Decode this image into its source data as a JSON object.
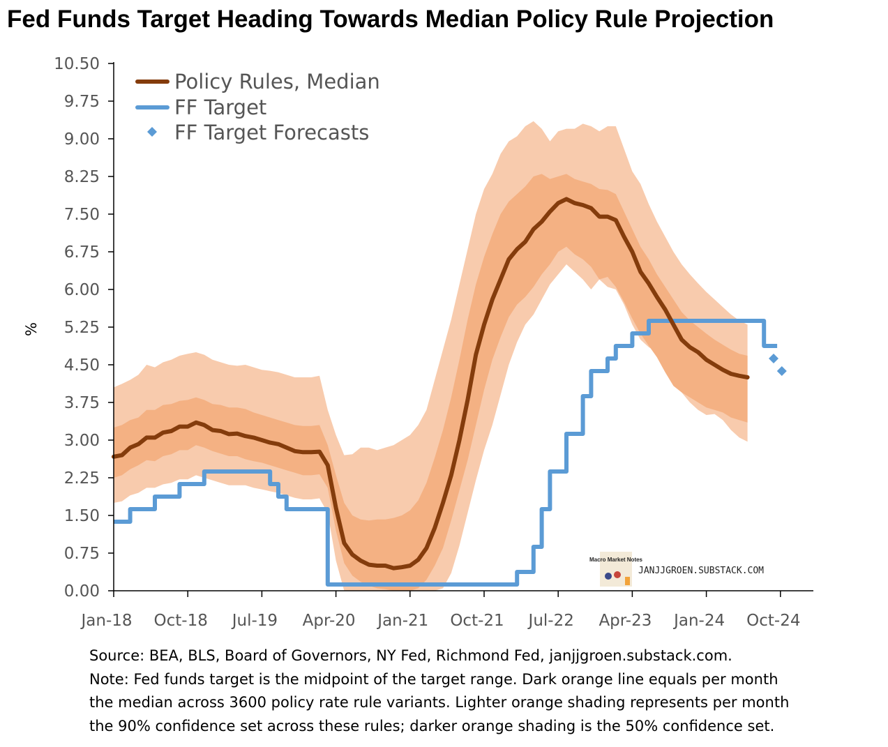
{
  "title": "Fed Funds Target Heading Towards Median Policy Rule Projection",
  "notes": {
    "source": "Source: BEA, BLS, Board of Governors, NY Fed, Richmond Fed, janjjgroen.substack.com.",
    "note_line1": "Note: Fed funds target is the midpoint of the target range. Dark orange line equals per month",
    "note_line2": "the median across 3600 policy rate rule variants. Lighter orange shading represents per month",
    "note_line3": "the 90% confidence set across these rules; darker orange shading is the 50% confidence set."
  },
  "watermark": {
    "text": "JANJJGROEN.SUBSTACK.COM",
    "logo_text": "Macro Market Notes"
  },
  "colors": {
    "median": "#843C0C",
    "band90": "#F8CBAD",
    "band50": "#F4B183",
    "target": "#5B9BD5"
  },
  "chart_data": {
    "type": "line",
    "title": "Fed Funds Target Heading Towards Median Policy Rule Projection",
    "xlabel": "",
    "ylabel": "%",
    "ylim": [
      0,
      10.5
    ],
    "yticks": [
      "0.00",
      "0.75",
      "1.50",
      "2.25",
      "3.00",
      "3.75",
      "4.50",
      "5.25",
      "6.00",
      "6.75",
      "7.50",
      "8.25",
      "9.00",
      "9.75",
      "10.50"
    ],
    "xticks": [
      "Jan-18",
      "Oct-18",
      "Jul-19",
      "Apr-20",
      "Jan-21",
      "Oct-21",
      "Jul-22",
      "Apr-23",
      "Jan-24",
      "Oct-24"
    ],
    "x_start": "Jan-18",
    "x_end": "Dec-24",
    "grid": false,
    "legend_position": "top-left",
    "legend": [
      "Policy Rules, Median",
      "FF Target",
      "FF Target Forecasts"
    ],
    "series": [
      {
        "name": "Policy Rules, Median",
        "values": [
          2.67,
          2.7,
          2.85,
          2.92,
          3.05,
          3.05,
          3.15,
          3.18,
          3.27,
          3.27,
          3.35,
          3.3,
          3.2,
          3.18,
          3.12,
          3.13,
          3.08,
          3.05,
          3.0,
          2.95,
          2.92,
          2.85,
          2.78,
          2.76,
          2.76,
          2.77,
          2.5,
          1.65,
          0.95,
          0.72,
          0.6,
          0.52,
          0.5,
          0.5,
          0.45,
          0.47,
          0.5,
          0.62,
          0.85,
          1.25,
          1.75,
          2.3,
          3.0,
          3.8,
          4.7,
          5.3,
          5.8,
          6.2,
          6.6,
          6.8,
          6.95,
          7.2,
          7.35,
          7.55,
          7.72,
          7.8,
          7.72,
          7.68,
          7.62,
          7.45,
          7.45,
          7.38,
          7.05,
          6.75,
          6.35,
          6.12,
          5.85,
          5.6,
          5.3,
          5.0,
          4.85,
          4.75,
          4.6,
          4.5,
          4.4,
          4.32,
          4.28,
          4.25
        ]
      },
      {
        "name": "FF Target",
        "values": [
          1.375,
          1.375,
          1.625,
          1.625,
          1.625,
          1.875,
          1.875,
          1.875,
          2.125,
          2.125,
          2.125,
          2.375,
          2.375,
          2.375,
          2.375,
          2.375,
          2.375,
          2.375,
          2.375,
          2.125,
          1.875,
          1.625,
          1.625,
          1.625,
          1.625,
          1.625,
          0.125,
          0.125,
          0.125,
          0.125,
          0.125,
          0.125,
          0.125,
          0.125,
          0.125,
          0.125,
          0.125,
          0.125,
          0.125,
          0.125,
          0.125,
          0.125,
          0.125,
          0.125,
          0.125,
          0.125,
          0.125,
          0.125,
          0.125,
          0.375,
          0.375,
          0.875,
          1.625,
          2.375,
          2.375,
          3.125,
          3.125,
          3.875,
          4.375,
          4.375,
          4.625,
          4.875,
          4.875,
          5.125,
          5.125,
          5.375,
          5.375,
          5.375,
          5.375,
          5.375,
          5.375,
          5.375,
          5.375,
          5.375,
          5.375,
          5.375,
          5.375,
          5.375,
          5.375,
          4.875,
          4.875
        ]
      },
      {
        "name": "FF Target Forecasts",
        "x_index": [
          80,
          81
        ],
        "values": [
          4.625,
          4.375
        ]
      }
    ],
    "bands": {
      "band90_upper": [
        4.05,
        4.12,
        4.2,
        4.3,
        4.5,
        4.45,
        4.55,
        4.6,
        4.68,
        4.72,
        4.75,
        4.7,
        4.6,
        4.55,
        4.5,
        4.48,
        4.5,
        4.45,
        4.4,
        4.38,
        4.35,
        4.3,
        4.25,
        4.25,
        4.25,
        4.28,
        3.6,
        3.1,
        2.7,
        2.72,
        2.85,
        2.85,
        2.8,
        2.85,
        2.9,
        3.0,
        3.1,
        3.3,
        3.6,
        4.2,
        4.8,
        5.4,
        6.1,
        6.8,
        7.5,
        8.0,
        8.3,
        8.7,
        8.95,
        9.05,
        9.25,
        9.35,
        9.2,
        8.95,
        9.15,
        9.2,
        9.2,
        9.3,
        9.25,
        9.15,
        9.25,
        9.25,
        8.8,
        8.35,
        8.1,
        7.7,
        7.35,
        7.05,
        6.75,
        6.5,
        6.3,
        6.12,
        5.95,
        5.8,
        5.65,
        5.5,
        5.38,
        5.3
      ],
      "band50_upper": [
        3.25,
        3.3,
        3.4,
        3.45,
        3.6,
        3.6,
        3.7,
        3.72,
        3.78,
        3.8,
        3.85,
        3.8,
        3.72,
        3.7,
        3.65,
        3.65,
        3.62,
        3.55,
        3.5,
        3.45,
        3.4,
        3.35,
        3.3,
        3.28,
        3.28,
        3.3,
        2.9,
        2.3,
        1.75,
        1.5,
        1.42,
        1.4,
        1.42,
        1.42,
        1.45,
        1.5,
        1.6,
        1.8,
        2.15,
        2.65,
        3.2,
        3.85,
        4.6,
        5.4,
        6.1,
        6.65,
        7.1,
        7.5,
        7.75,
        7.9,
        8.05,
        8.25,
        8.3,
        8.2,
        8.25,
        8.3,
        8.2,
        8.15,
        8.1,
        8.0,
        7.98,
        7.9,
        7.55,
        7.2,
        6.85,
        6.6,
        6.3,
        6.05,
        5.8,
        5.55,
        5.38,
        5.25,
        5.12,
        5.0,
        4.9,
        4.8,
        4.72,
        4.68
      ],
      "band50_lower": [
        2.25,
        2.3,
        2.42,
        2.5,
        2.6,
        2.58,
        2.68,
        2.72,
        2.8,
        2.8,
        2.9,
        2.85,
        2.78,
        2.73,
        2.68,
        2.68,
        2.62,
        2.58,
        2.55,
        2.5,
        2.45,
        2.4,
        2.35,
        2.3,
        2.3,
        2.32,
        2.05,
        1.2,
        0.55,
        0.3,
        0.18,
        0.1,
        0.05,
        0.03,
        0.0,
        0.0,
        0.0,
        0.05,
        0.22,
        0.5,
        0.85,
        1.4,
        2.0,
        2.6,
        3.3,
        4.0,
        4.6,
        5.05,
        5.45,
        5.7,
        5.85,
        6.05,
        6.3,
        6.5,
        6.75,
        6.85,
        6.7,
        6.6,
        6.45,
        6.2,
        6.25,
        6.05,
        5.75,
        5.42,
        5.12,
        4.88,
        4.65,
        4.35,
        4.08,
        3.95,
        3.85,
        3.75,
        3.65,
        3.6,
        3.55,
        3.45,
        3.4,
        3.35
      ],
      "band90_lower": [
        1.75,
        1.78,
        1.9,
        1.95,
        2.05,
        2.05,
        2.12,
        2.15,
        2.22,
        2.22,
        2.3,
        2.25,
        2.2,
        2.15,
        2.1,
        2.1,
        2.1,
        2.05,
        2.02,
        1.98,
        1.95,
        1.9,
        1.85,
        1.82,
        1.82,
        1.84,
        1.55,
        0.6,
        0.0,
        0.0,
        0.0,
        0.0,
        0.0,
        0.0,
        0.0,
        0.0,
        0.0,
        0.0,
        0.0,
        0.0,
        0.05,
        0.35,
        0.9,
        1.55,
        2.2,
        2.8,
        3.3,
        3.9,
        4.5,
        4.95,
        5.3,
        5.5,
        5.8,
        6.1,
        6.3,
        6.5,
        6.35,
        6.2,
        6.0,
        6.2,
        6.05,
        6.0,
        5.7,
        5.3,
        5.0,
        4.85,
        4.75,
        4.5,
        4.2,
        3.95,
        3.75,
        3.6,
        3.5,
        3.52,
        3.4,
        3.2,
        3.05,
        2.97
      ]
    }
  }
}
